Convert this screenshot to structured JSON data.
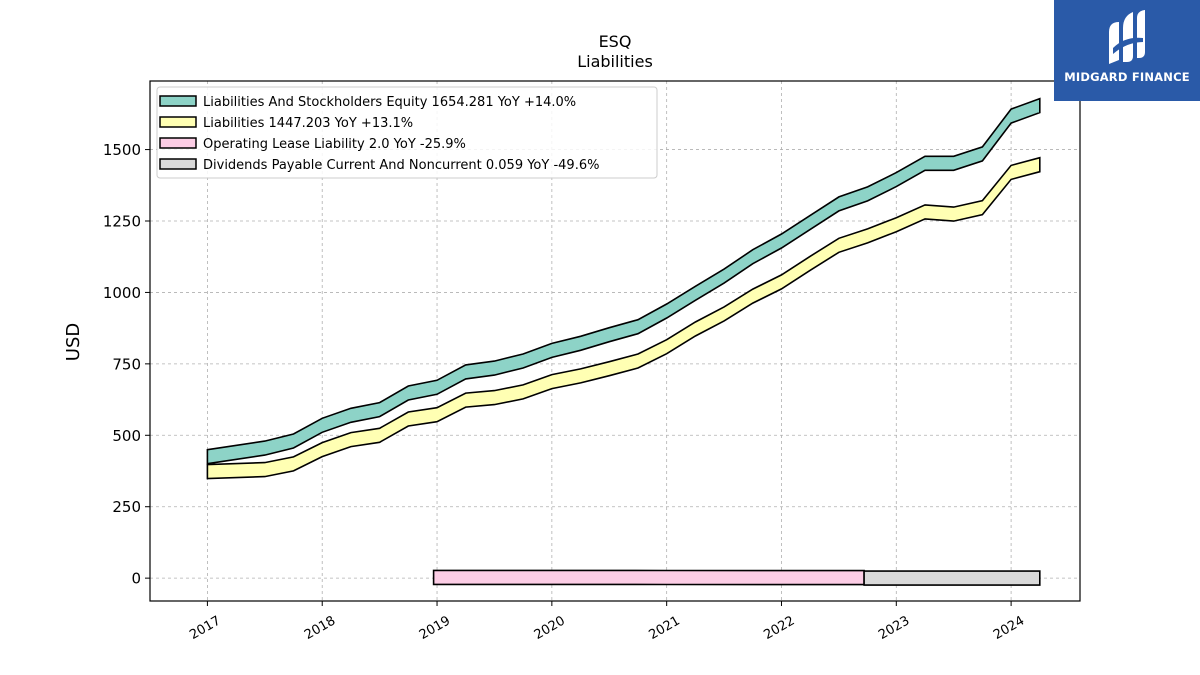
{
  "brand": {
    "name": "MIDGARD FINANCE",
    "color": "#2a5aa8"
  },
  "chart_data": {
    "type": "area",
    "title": "ESQ",
    "subtitle": "Liabilities",
    "xlabel": "",
    "ylabel": "USD",
    "ylim": [
      -80,
      1740
    ],
    "xlim": [
      2016.5,
      2024.6
    ],
    "yticks": [
      0,
      250,
      500,
      750,
      1000,
      1250,
      1500
    ],
    "xticks": [
      2017,
      2018,
      2019,
      2020,
      2021,
      2022,
      2023,
      2024
    ],
    "grid": true,
    "legend_position": "top-left",
    "series": [
      {
        "name": "Liabilities And Stockholders Equity",
        "legend": "Liabilities And Stockholders Equity  1654.281 YoY +14.0%",
        "color": "#8dd3c7",
        "points": [
          [
            2017.0,
            425
          ],
          [
            2017.5,
            455
          ],
          [
            2017.75,
            480
          ],
          [
            2018.0,
            535
          ],
          [
            2018.25,
            570
          ],
          [
            2018.5,
            590
          ],
          [
            2018.75,
            648
          ],
          [
            2019.0,
            668
          ],
          [
            2019.25,
            722
          ],
          [
            2019.5,
            735
          ],
          [
            2019.75,
            760
          ],
          [
            2020.0,
            797
          ],
          [
            2020.25,
            822
          ],
          [
            2020.5,
            852
          ],
          [
            2020.75,
            880
          ],
          [
            2021.0,
            935
          ],
          [
            2021.25,
            997
          ],
          [
            2021.5,
            1057
          ],
          [
            2021.75,
            1125
          ],
          [
            2022.0,
            1180
          ],
          [
            2022.25,
            1245
          ],
          [
            2022.5,
            1310
          ],
          [
            2022.75,
            1345
          ],
          [
            2023.0,
            1395
          ],
          [
            2023.25,
            1452
          ],
          [
            2023.5,
            1452
          ],
          [
            2023.75,
            1485
          ],
          [
            2024.0,
            1617
          ],
          [
            2024.25,
            1654
          ]
        ]
      },
      {
        "name": "Liabilities",
        "legend": "Liabilities  1447.203 YoY +13.1%",
        "color": "#ffffb3",
        "points": [
          [
            2017.0,
            373
          ],
          [
            2017.5,
            380
          ],
          [
            2017.75,
            400
          ],
          [
            2018.0,
            450
          ],
          [
            2018.25,
            485
          ],
          [
            2018.5,
            500
          ],
          [
            2018.75,
            557
          ],
          [
            2019.0,
            572
          ],
          [
            2019.25,
            623
          ],
          [
            2019.5,
            632
          ],
          [
            2019.75,
            652
          ],
          [
            2020.0,
            688
          ],
          [
            2020.25,
            708
          ],
          [
            2020.5,
            733
          ],
          [
            2020.75,
            760
          ],
          [
            2021.0,
            810
          ],
          [
            2021.25,
            872
          ],
          [
            2021.5,
            925
          ],
          [
            2021.75,
            987
          ],
          [
            2022.0,
            1037
          ],
          [
            2022.25,
            1102
          ],
          [
            2022.5,
            1165
          ],
          [
            2022.75,
            1198
          ],
          [
            2023.0,
            1237
          ],
          [
            2023.25,
            1282
          ],
          [
            2023.5,
            1274
          ],
          [
            2023.75,
            1297
          ],
          [
            2024.0,
            1420
          ],
          [
            2024.25,
            1447
          ]
        ]
      },
      {
        "name": "Operating Lease Liability",
        "legend": "Operating Lease Liability  2.0 YoY -25.9%",
        "color": "#fccde5",
        "points": [
          [
            2018.97,
            2.5
          ],
          [
            2020.0,
            2.5
          ],
          [
            2021.0,
            2.2
          ],
          [
            2022.0,
            2.0
          ],
          [
            2022.72,
            2.0
          ]
        ]
      },
      {
        "name": "Dividends Payable Current And Noncurrent",
        "legend": "Dividends Payable Current And Noncurrent  0.059 YoY -49.6%",
        "color": "#d9d9d9",
        "points": [
          [
            2022.72,
            0.12
          ],
          [
            2023.0,
            0.1
          ],
          [
            2023.5,
            0.08
          ],
          [
            2024.0,
            0.065
          ],
          [
            2024.25,
            0.059
          ]
        ]
      }
    ]
  }
}
